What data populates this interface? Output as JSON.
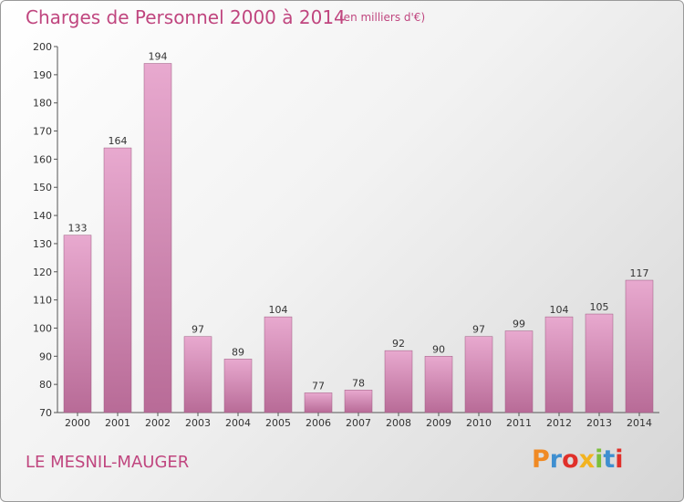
{
  "header": {
    "title": "Charges de Personnel 2000 à 2014",
    "unit_note": "(en milliers d'€)"
  },
  "footer": {
    "commune": "LE MESNIL-MAUGER",
    "logo_text": "Proxiti"
  },
  "colors": {
    "title": "#c0467f",
    "bar_light": "#e8a9cf",
    "bar_dark": "#b86b97",
    "axis": "#555555",
    "grid": "#dddddd",
    "logo_letters": [
      "#f08a24",
      "#3f8fd0",
      "#e0302a",
      "#f2b320",
      "#7bbf3b",
      "#3f8fd0",
      "#e0302a"
    ]
  },
  "chart_data": {
    "type": "bar",
    "title": "Charges de Personnel 2000 à 2014",
    "subtitle": "(en milliers d'€)",
    "xlabel": "",
    "ylabel": "",
    "categories": [
      "2000",
      "2001",
      "2002",
      "2003",
      "2004",
      "2005",
      "2006",
      "2007",
      "2008",
      "2009",
      "2010",
      "2011",
      "2012",
      "2013",
      "2014"
    ],
    "values": [
      133,
      164,
      194,
      97,
      89,
      104,
      77,
      78,
      92,
      90,
      97,
      99,
      104,
      105,
      117
    ],
    "ylim": [
      70,
      200
    ],
    "yticks": [
      70,
      80,
      90,
      100,
      110,
      120,
      130,
      140,
      150,
      160,
      170,
      180,
      190,
      200
    ],
    "grid": false,
    "legend": "none"
  }
}
